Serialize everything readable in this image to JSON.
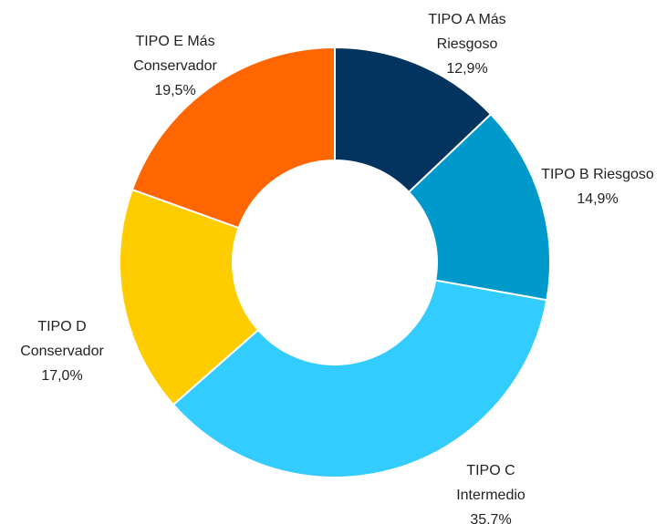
{
  "chart_data": {
    "type": "donut",
    "categories": [
      "TIPO A Más Riesgoso",
      "TIPO B Riesgoso",
      "TIPO C Intermedio",
      "TIPO D Conservador",
      "TIPO E Más Conservador"
    ],
    "values": [
      12.9,
      14.9,
      35.7,
      17.0,
      19.5
    ],
    "value_labels": [
      "12,9%",
      "14,9%",
      "35,7%",
      "17,0%",
      "19,5%"
    ],
    "colors": [
      "#03335f",
      "#0099cc",
      "#33ccff",
      "#ffcc00",
      "#ff6600"
    ]
  }
}
